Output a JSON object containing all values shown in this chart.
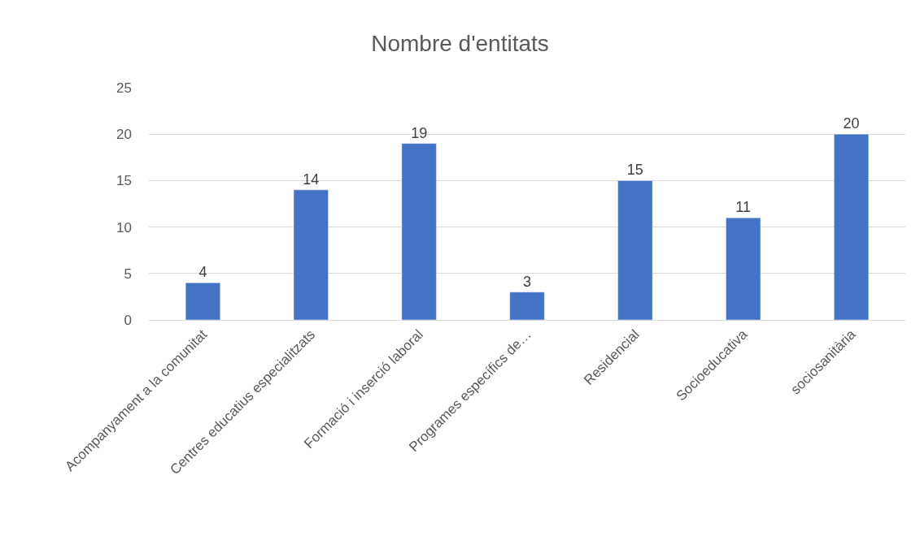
{
  "chart_data": {
    "type": "bar",
    "title": "Nombre d'entitats",
    "categories": [
      "Acompanyament a la comunitat",
      "Centres educatius especialitzats",
      "Formació i inserció laboral",
      "Programes específics de…",
      "Residencial",
      "Socioeducativa",
      "sociosanitària"
    ],
    "values": [
      4,
      14,
      19,
      3,
      15,
      11,
      20
    ],
    "color": "#4472c4",
    "ylim": [
      0,
      25
    ],
    "yticks": [
      0,
      5,
      10,
      15,
      20,
      25
    ],
    "grid": "y",
    "data_labels": true
  }
}
